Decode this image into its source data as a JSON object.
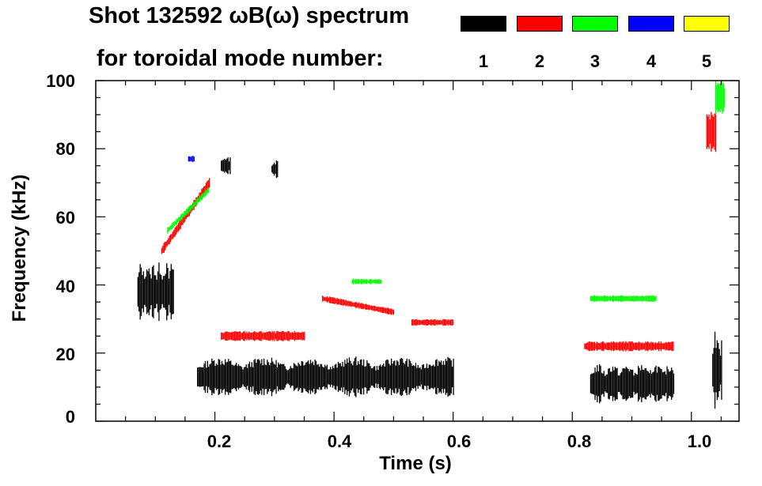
{
  "header": {
    "title_line1": "Shot 132592 ωB(ω) spectrum",
    "title_line2": "for toroidal mode number:"
  },
  "legend": [
    {
      "mode": "1",
      "color": "#000000"
    },
    {
      "mode": "2",
      "color": "#ff0000"
    },
    {
      "mode": "3",
      "color": "#00ff00"
    },
    {
      "mode": "4",
      "color": "#0000ff"
    },
    {
      "mode": "5",
      "color": "#ffff00"
    }
  ],
  "chart_data": {
    "type": "heatmap",
    "title": "Shot 132592 ωB(ω) spectrum for toroidal mode number:",
    "xlabel": "Time (s)",
    "ylabel": "Frequency (kHz)",
    "xlim": [
      0.0,
      1.08
    ],
    "ylim": [
      0,
      100
    ],
    "xticks": [
      "0.2",
      "0.4",
      "0.6",
      "0.8",
      "1.0"
    ],
    "xtick_values": [
      0.2,
      0.4,
      0.6,
      0.8,
      1.0
    ],
    "yticks": [
      "0",
      "20",
      "40",
      "60",
      "80",
      "100"
    ],
    "ytick_values": [
      0,
      20,
      40,
      60,
      80,
      100
    ],
    "bands": [
      {
        "mode": 1,
        "t0": 0.07,
        "t1": 0.13,
        "f_center": 38,
        "half_width": 9
      },
      {
        "mode": 1,
        "t0": 0.17,
        "t1": 0.6,
        "f_center": 13,
        "half_width": 6
      },
      {
        "mode": 1,
        "t0": 0.83,
        "t1": 0.97,
        "f_center": 11,
        "half_width": 6
      },
      {
        "mode": 1,
        "t0": 1.035,
        "t1": 1.05,
        "f_center": 15,
        "half_width": 12
      },
      {
        "mode": 1,
        "t0": 0.21,
        "t1": 0.225,
        "f_center": 75,
        "half_width": 3
      },
      {
        "mode": 1,
        "t0": 0.295,
        "t1": 0.305,
        "f_center": 74,
        "half_width": 3
      },
      {
        "mode": 2,
        "t0": 0.11,
        "t1": 0.19,
        "f_start": 50,
        "f_end": 70,
        "half_width": 1.5
      },
      {
        "mode": 2,
        "t0": 0.21,
        "t1": 0.35,
        "f_center": 25,
        "half_width": 1.5
      },
      {
        "mode": 2,
        "t0": 0.38,
        "t1": 0.5,
        "f_start": 36,
        "f_end": 32,
        "half_width": 1
      },
      {
        "mode": 2,
        "t0": 0.53,
        "t1": 0.6,
        "f_center": 29,
        "half_width": 1
      },
      {
        "mode": 2,
        "t0": 0.82,
        "t1": 0.97,
        "f_center": 22,
        "half_width": 1.5
      },
      {
        "mode": 2,
        "t0": 1.025,
        "t1": 1.04,
        "f_center": 85,
        "half_width": 6
      },
      {
        "mode": 3,
        "t0": 0.12,
        "t1": 0.19,
        "f_start": 56,
        "f_end": 68,
        "half_width": 1
      },
      {
        "mode": 3,
        "t0": 0.43,
        "t1": 0.48,
        "f_center": 41,
        "half_width": 0.8
      },
      {
        "mode": 3,
        "t0": 0.83,
        "t1": 0.94,
        "f_center": 36,
        "half_width": 1
      },
      {
        "mode": 3,
        "t0": 1.04,
        "t1": 1.055,
        "f_center": 95,
        "half_width": 5
      },
      {
        "mode": 4,
        "t0": 0.155,
        "t1": 0.165,
        "f_center": 77,
        "half_width": 1
      }
    ]
  }
}
